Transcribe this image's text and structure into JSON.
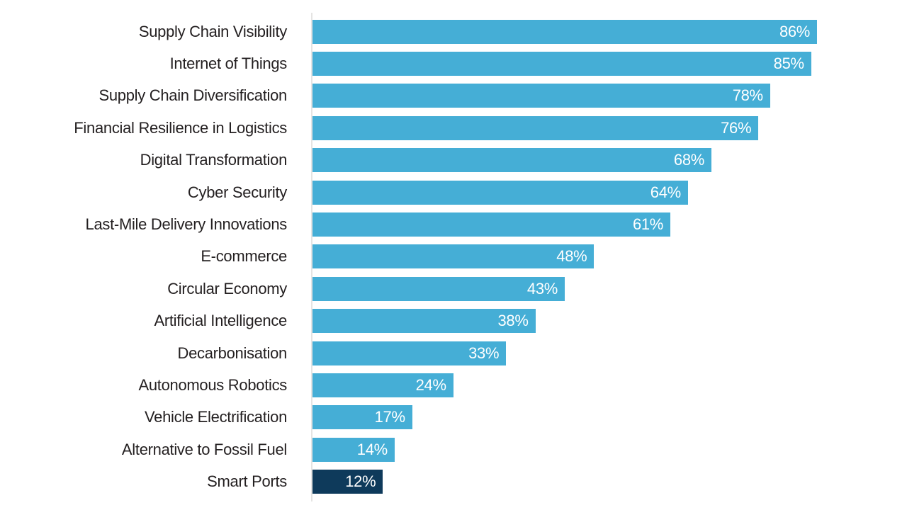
{
  "chart_data": {
    "type": "bar",
    "orientation": "horizontal",
    "title": "",
    "xlabel": "",
    "ylabel": "",
    "xlim": [
      0,
      100
    ],
    "grid": false,
    "legend": "none",
    "value_suffix": "%",
    "categories": [
      "Supply Chain Visibility",
      "Internet of Things",
      "Supply Chain Diversification",
      "Financial Resilience in Logistics",
      "Digital Transformation",
      "Cyber Security",
      "Last-Mile Delivery Innovations",
      "E-commerce",
      "Circular Economy",
      "Artificial Intelligence",
      "Decarbonisation",
      "Autonomous Robotics",
      "Vehicle Electrification",
      "Alternative to Fossil Fuel",
      "Smart Ports"
    ],
    "values": [
      86,
      85,
      78,
      76,
      68,
      64,
      61,
      48,
      43,
      38,
      33,
      24,
      17,
      14,
      12
    ],
    "value_labels": [
      "86%",
      "85%",
      "78%",
      "76%",
      "68%",
      "64%",
      "61%",
      "48%",
      "43%",
      "38%",
      "33%",
      "24%",
      "17%",
      "14%",
      "12%"
    ],
    "colors": {
      "bar": "#45AED6",
      "highlight_bar": "#0E3A5B",
      "category_label": "#231F20",
      "value_label": "#FFFFFF",
      "axis_line": "#E5E4E3",
      "background": "#FFFFFF"
    },
    "highlight_category": "Smart Ports",
    "highlight_index": 14
  }
}
